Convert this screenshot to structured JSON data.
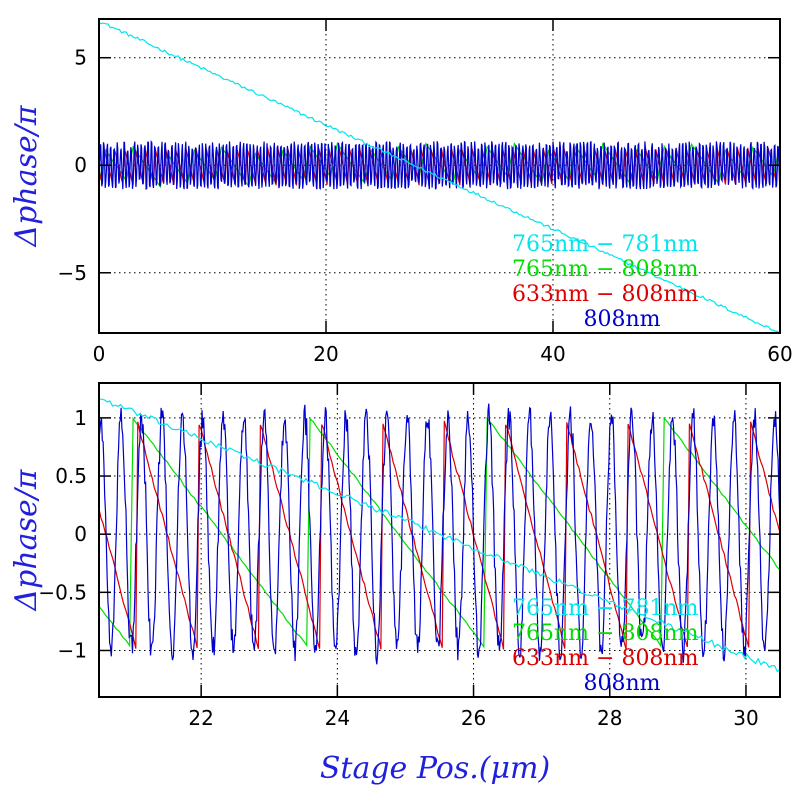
{
  "chart_data": [
    {
      "type": "line",
      "title": "",
      "xlabel": "",
      "ylabel": "Δphase/π",
      "xlim": [
        0,
        60
      ],
      "ylim": [
        -7.8,
        6.8
      ],
      "xticks": [
        0,
        20,
        40,
        60
      ],
      "xtick_labels": [
        "0",
        "20",
        "40",
        "60"
      ],
      "yticks": [
        -5,
        0,
        5
      ],
      "ytick_labels": [
        "−5",
        "0",
        "5"
      ],
      "grid": true,
      "legend_position": "bottom-right",
      "series": [
        {
          "name": "765nm − 781nm",
          "color": "#00e5ee",
          "trend": [
            [
              0,
              6.7
            ],
            [
              60,
              -7.8
            ]
          ]
        },
        {
          "name": "765nm − 808nm",
          "color": "#00dd00",
          "range": [
            -1,
            1
          ],
          "period": 2.6
        },
        {
          "name": "633nm − 808nm",
          "color": "#dd0000",
          "range": [
            -1,
            1
          ],
          "period": 0.9
        },
        {
          "name": "808nm",
          "color": "#0000cc",
          "range": [
            -1,
            1
          ],
          "period": 0.3
        }
      ]
    },
    {
      "type": "line",
      "title": "",
      "xlabel": "Stage Pos.(μm)",
      "ylabel": "Δphase/π",
      "xlim": [
        20.5,
        30.5
      ],
      "ylim": [
        -1.4,
        1.3
      ],
      "xticks": [
        22,
        24,
        26,
        28,
        30
      ],
      "xtick_labels": [
        "22",
        "24",
        "26",
        "28",
        "30"
      ],
      "yticks": [
        -1,
        -0.5,
        0,
        0.5,
        1
      ],
      "ytick_labels": [
        "−1",
        "−0.5",
        "0",
        "0.5",
        "1"
      ],
      "grid": true,
      "legend_position": "bottom-right",
      "series": [
        {
          "name": "765nm − 781nm",
          "color": "#00e5ee",
          "trend": [
            [
              20.5,
              1.17
            ],
            [
              30.5,
              -1.17
            ]
          ]
        },
        {
          "name": "765nm − 808nm",
          "color": "#00dd00",
          "range": [
            -1,
            1
          ],
          "period": 2.6
        },
        {
          "name": "633nm − 808nm",
          "color": "#dd0000",
          "range": [
            -1,
            1
          ],
          "period": 0.9
        },
        {
          "name": "808nm",
          "color": "#0000cc",
          "range": [
            -1,
            1
          ],
          "period": 0.3
        }
      ]
    }
  ],
  "colors": {
    "axis": "#000000",
    "ylabel": "#2020dd",
    "xlabel": "#2020dd",
    "grid": "#000000"
  }
}
